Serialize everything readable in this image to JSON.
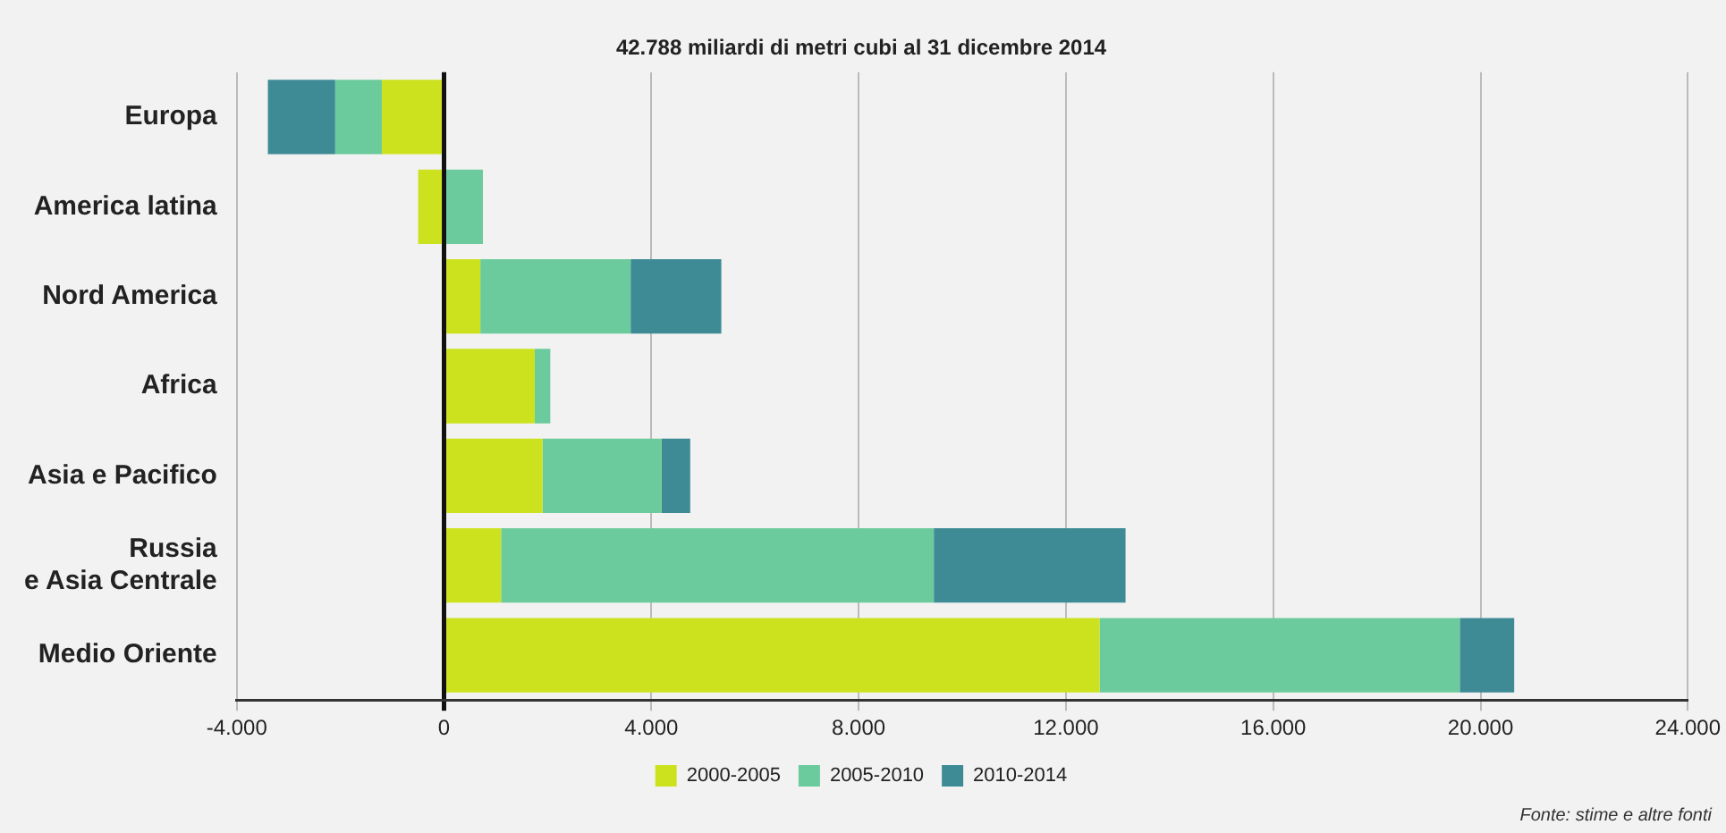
{
  "chart_data": {
    "type": "bar",
    "orientation": "horizontal",
    "stacked": true,
    "title": "42.788 miliardi di metri cubi al 31 dicembre 2014",
    "categories": [
      "Europa",
      "America latina",
      "Nord America",
      "Africa",
      "Asia e Pacifico",
      "Russia\ne Asia Centrale",
      "Medio Oriente"
    ],
    "series": [
      {
        "name": "2000-2005",
        "color": "#cde21f",
        "values": [
          -1200,
          -500,
          700,
          1750,
          1900,
          1100,
          12650
        ]
      },
      {
        "name": "2005-2010",
        "color": "#6ccb9c",
        "values": [
          -900,
          750,
          2900,
          300,
          2300,
          8350,
          6950
        ]
      },
      {
        "name": "2010-2014",
        "color": "#3e8b96",
        "values": [
          -1300,
          null,
          1750,
          null,
          550,
          3700,
          1050
        ]
      }
    ],
    "xlim": [
      -4000,
      24000
    ],
    "xticks": [
      {
        "value": -4000,
        "label": "-4.000"
      },
      {
        "value": 0,
        "label": "0"
      },
      {
        "value": 4000,
        "label": "4.000"
      },
      {
        "value": 8000,
        "label": "8.000"
      },
      {
        "value": 12000,
        "label": "12.000"
      },
      {
        "value": 16000,
        "label": "16.000"
      },
      {
        "value": 20000,
        "label": "20.000"
      },
      {
        "value": 24000,
        "label": "24.000"
      }
    ],
    "grid": "x",
    "legend": "bottom",
    "annotations": [
      "Fonte: stime e altre fonti"
    ]
  }
}
